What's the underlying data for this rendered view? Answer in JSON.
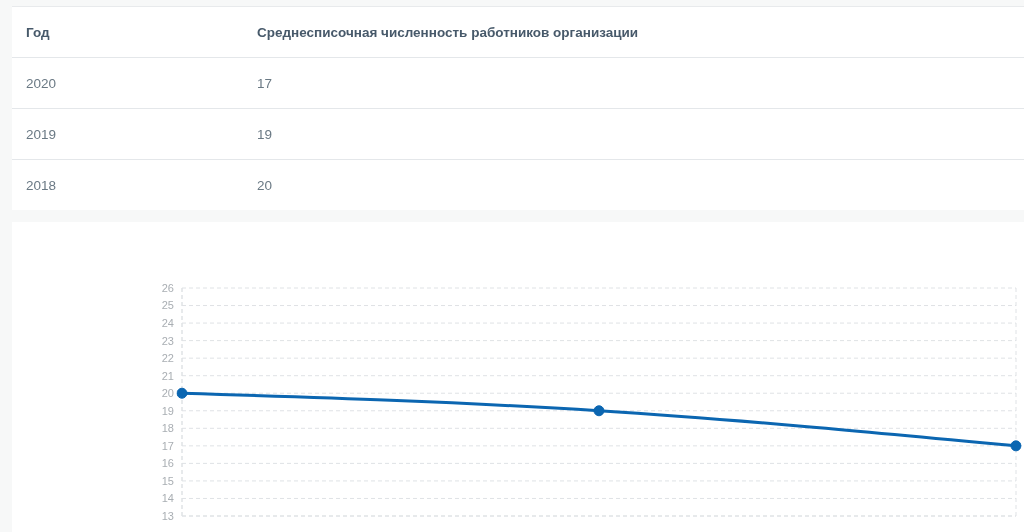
{
  "chart_data": [
    {
      "type": "other",
      "annotations": [
        "Год",
        "Среднесписочная численность работников организации"
      ],
      "categories": [
        "2020",
        "2019",
        "2018"
      ],
      "values": [
        17,
        19,
        20
      ],
      "data_labels": true
    },
    {
      "type": "line",
      "categories": [
        null,
        null,
        null
      ],
      "values": [
        20,
        19,
        17
      ],
      "color": "#0b66b1",
      "ylim": [
        13,
        26
      ],
      "yticks": [
        13,
        14,
        15,
        16,
        17,
        18,
        19,
        20,
        21,
        22,
        23,
        24,
        25,
        26
      ],
      "grid": true,
      "marker": "circle",
      "tick_labels": "y"
    }
  ]
}
